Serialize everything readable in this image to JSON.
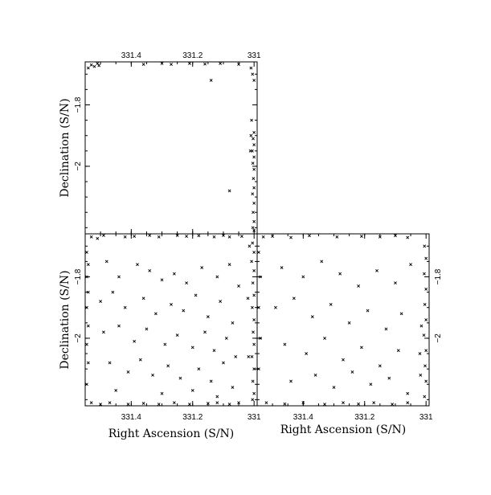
{
  "chart_data": {
    "type": "scatter",
    "xlabel": "Right Ascension (S/N)",
    "ylabel": "Declination (S/N)",
    "xlim": [
      331.55,
      330.99
    ],
    "ylim": [
      -2.22,
      -1.66
    ],
    "x_ticks": [
      {
        "value": 331.4,
        "label": "331.4"
      },
      {
        "value": 331.2,
        "label": "331.2"
      },
      {
        "value": 331.0,
        "label": "331"
      }
    ],
    "y_ticks": [
      {
        "value": -1.8,
        "label": "−1.8"
      },
      {
        "value": -2.0,
        "label": "−2"
      }
    ],
    "colors": {
      "points": "#000000",
      "frame": "#000000",
      "background": "#ffffff"
    },
    "panels": [
      {
        "id": "top-left",
        "x_tick_labels_side": "top",
        "y_tick_labels_side": "left",
        "show_xlabel": false,
        "show_ylabel": true,
        "points": [
          [
            331.53,
            -1.67
          ],
          [
            331.52,
            -1.675
          ],
          [
            331.51,
            -1.665
          ],
          [
            331.54,
            -1.68
          ],
          [
            331.505,
            -1.672
          ],
          [
            331.36,
            -1.668
          ],
          [
            331.3,
            -1.665
          ],
          [
            331.27,
            -1.668
          ],
          [
            331.21,
            -1.665
          ],
          [
            331.16,
            -1.667
          ],
          [
            331.11,
            -1.665
          ],
          [
            331.05,
            -1.668
          ],
          [
            331.14,
            -1.72
          ],
          [
            331.01,
            -1.68
          ],
          [
            331.005,
            -1.7
          ],
          [
            331.0,
            -1.72
          ],
          [
            331.008,
            -1.85
          ],
          [
            331.0,
            -1.89
          ],
          [
            331.003,
            -1.91
          ],
          [
            331.0,
            -1.93
          ],
          [
            331.006,
            -1.95
          ],
          [
            331.0,
            -1.97
          ],
          [
            331.004,
            -1.99
          ],
          [
            331.0,
            -2.01
          ],
          [
            331.002,
            -2.04
          ],
          [
            331.0,
            -2.07
          ],
          [
            331.005,
            -2.09
          ],
          [
            331.0,
            -2.12
          ],
          [
            331.003,
            -2.15
          ],
          [
            331.0,
            -2.18
          ],
          [
            331.004,
            -2.2
          ],
          [
            331.01,
            -1.9
          ],
          [
            331.012,
            -1.95
          ],
          [
            331.08,
            -2.08
          ],
          [
            331.0,
            -2.21
          ]
        ]
      },
      {
        "id": "bottom-left",
        "x_tick_labels_side": "bottom",
        "y_tick_labels_side": "left",
        "show_xlabel": true,
        "show_ylabel": true,
        "points": [
          [
            331.53,
            -1.67
          ],
          [
            331.51,
            -1.675
          ],
          [
            331.49,
            -1.665
          ],
          [
            331.42,
            -1.67
          ],
          [
            331.39,
            -1.668
          ],
          [
            331.34,
            -1.665
          ],
          [
            331.31,
            -1.67
          ],
          [
            331.25,
            -1.665
          ],
          [
            331.22,
            -1.668
          ],
          [
            331.18,
            -1.666
          ],
          [
            331.13,
            -1.67
          ],
          [
            331.1,
            -1.665
          ],
          [
            331.08,
            -1.67
          ],
          [
            331.04,
            -1.668
          ],
          [
            331.53,
            -2.21
          ],
          [
            331.5,
            -2.215
          ],
          [
            331.47,
            -2.21
          ],
          [
            331.41,
            -2.215
          ],
          [
            331.36,
            -2.212
          ],
          [
            331.31,
            -2.215
          ],
          [
            331.26,
            -2.21
          ],
          [
            331.21,
            -2.215
          ],
          [
            331.15,
            -2.212
          ],
          [
            331.12,
            -2.21
          ],
          [
            331.08,
            -2.215
          ],
          [
            331.05,
            -2.21
          ],
          [
            331.545,
            -1.72
          ],
          [
            331.54,
            -1.76
          ],
          [
            331.545,
            -1.8
          ],
          [
            331.54,
            -1.85
          ],
          [
            331.545,
            -1.9
          ],
          [
            331.54,
            -1.96
          ],
          [
            331.545,
            -2.02
          ],
          [
            331.54,
            -2.08
          ],
          [
            331.545,
            -2.15
          ],
          [
            331.005,
            -1.69
          ],
          [
            331.0,
            -1.72
          ],
          [
            331.008,
            -1.75
          ],
          [
            331.0,
            -1.78
          ],
          [
            331.004,
            -1.82
          ],
          [
            331.0,
            -1.86
          ],
          [
            331.006,
            -1.9
          ],
          [
            331.0,
            -1.94
          ],
          [
            331.003,
            -1.98
          ],
          [
            331.0,
            -2.02
          ],
          [
            331.007,
            -2.06
          ],
          [
            331.0,
            -2.1
          ],
          [
            331.004,
            -2.14
          ],
          [
            331.0,
            -2.18
          ],
          [
            331.005,
            -2.2
          ],
          [
            331.015,
            -1.7
          ],
          [
            331.02,
            -1.87
          ],
          [
            331.018,
            -2.06
          ],
          [
            331.48,
            -1.75
          ],
          [
            331.44,
            -1.8
          ],
          [
            331.38,
            -1.76
          ],
          [
            331.34,
            -1.78
          ],
          [
            331.3,
            -1.81
          ],
          [
            331.26,
            -1.79
          ],
          [
            331.22,
            -1.82
          ],
          [
            331.17,
            -1.77
          ],
          [
            331.12,
            -1.8
          ],
          [
            331.08,
            -1.76
          ],
          [
            331.05,
            -1.83
          ],
          [
            331.5,
            -1.88
          ],
          [
            331.46,
            -1.85
          ],
          [
            331.42,
            -1.9
          ],
          [
            331.36,
            -1.87
          ],
          [
            331.32,
            -1.92
          ],
          [
            331.27,
            -1.89
          ],
          [
            331.23,
            -1.91
          ],
          [
            331.19,
            -1.86
          ],
          [
            331.15,
            -1.93
          ],
          [
            331.11,
            -1.88
          ],
          [
            331.07,
            -1.95
          ],
          [
            331.49,
            -1.98
          ],
          [
            331.44,
            -1.96
          ],
          [
            331.39,
            -2.01
          ],
          [
            331.35,
            -1.97
          ],
          [
            331.29,
            -2.02
          ],
          [
            331.25,
            -1.99
          ],
          [
            331.2,
            -2.03
          ],
          [
            331.16,
            -1.98
          ],
          [
            331.13,
            -2.04
          ],
          [
            331.09,
            -2.0
          ],
          [
            331.06,
            -2.06
          ],
          [
            331.47,
            -2.08
          ],
          [
            331.41,
            -2.11
          ],
          [
            331.37,
            -2.07
          ],
          [
            331.33,
            -2.12
          ],
          [
            331.28,
            -2.09
          ],
          [
            331.24,
            -2.13
          ],
          [
            331.18,
            -2.1
          ],
          [
            331.14,
            -2.14
          ],
          [
            331.1,
            -2.08
          ],
          [
            331.07,
            -2.16
          ],
          [
            331.45,
            -2.17
          ],
          [
            331.3,
            -2.18
          ],
          [
            331.2,
            -2.17
          ],
          [
            331.12,
            -2.19
          ]
        ]
      },
      {
        "id": "bottom-right",
        "x_tick_labels_side": "bottom",
        "y_tick_labels_side": "right",
        "show_xlabel": true,
        "show_ylabel": false,
        "points": [
          [
            331.53,
            -1.67
          ],
          [
            331.5,
            -1.668
          ],
          [
            331.44,
            -1.672
          ],
          [
            331.38,
            -1.666
          ],
          [
            331.29,
            -1.67
          ],
          [
            331.21,
            -1.668
          ],
          [
            331.15,
            -1.67
          ],
          [
            331.1,
            -1.666
          ],
          [
            331.06,
            -1.672
          ],
          [
            331.52,
            -2.21
          ],
          [
            331.46,
            -2.214
          ],
          [
            331.4,
            -2.21
          ],
          [
            331.33,
            -2.215
          ],
          [
            331.27,
            -2.21
          ],
          [
            331.22,
            -2.214
          ],
          [
            331.17,
            -2.21
          ],
          [
            331.11,
            -2.215
          ],
          [
            331.06,
            -2.21
          ],
          [
            331.545,
            -1.72
          ],
          [
            331.54,
            -1.8
          ],
          [
            331.545,
            -1.9
          ],
          [
            331.54,
            -2.0
          ],
          [
            331.545,
            -2.1
          ],
          [
            331.005,
            -1.7
          ],
          [
            331.0,
            -1.74
          ],
          [
            331.006,
            -1.79
          ],
          [
            331.0,
            -1.84
          ],
          [
            331.004,
            -1.89
          ],
          [
            331.0,
            -1.94
          ],
          [
            331.007,
            -1.99
          ],
          [
            331.0,
            -2.04
          ],
          [
            331.003,
            -2.09
          ],
          [
            331.0,
            -2.14
          ],
          [
            331.005,
            -2.19
          ],
          [
            331.015,
            -1.96
          ],
          [
            331.02,
            -2.05
          ],
          [
            331.018,
            -2.12
          ],
          [
            331.47,
            -1.77
          ],
          [
            331.4,
            -1.8
          ],
          [
            331.34,
            -1.75
          ],
          [
            331.28,
            -1.79
          ],
          [
            331.22,
            -1.83
          ],
          [
            331.16,
            -1.78
          ],
          [
            331.1,
            -1.82
          ],
          [
            331.05,
            -1.76
          ],
          [
            331.49,
            -1.9
          ],
          [
            331.43,
            -1.87
          ],
          [
            331.37,
            -1.93
          ],
          [
            331.31,
            -1.89
          ],
          [
            331.25,
            -1.95
          ],
          [
            331.19,
            -1.91
          ],
          [
            331.13,
            -1.97
          ],
          [
            331.08,
            -1.92
          ],
          [
            331.46,
            -2.02
          ],
          [
            331.39,
            -2.05
          ],
          [
            331.33,
            -2.0
          ],
          [
            331.27,
            -2.07
          ],
          [
            331.21,
            -2.03
          ],
          [
            331.15,
            -2.09
          ],
          [
            331.09,
            -2.04
          ],
          [
            331.44,
            -2.14
          ],
          [
            331.36,
            -2.12
          ],
          [
            331.3,
            -2.16
          ],
          [
            331.24,
            -2.11
          ],
          [
            331.18,
            -2.15
          ],
          [
            331.12,
            -2.13
          ],
          [
            331.06,
            -2.18
          ]
        ]
      }
    ]
  }
}
